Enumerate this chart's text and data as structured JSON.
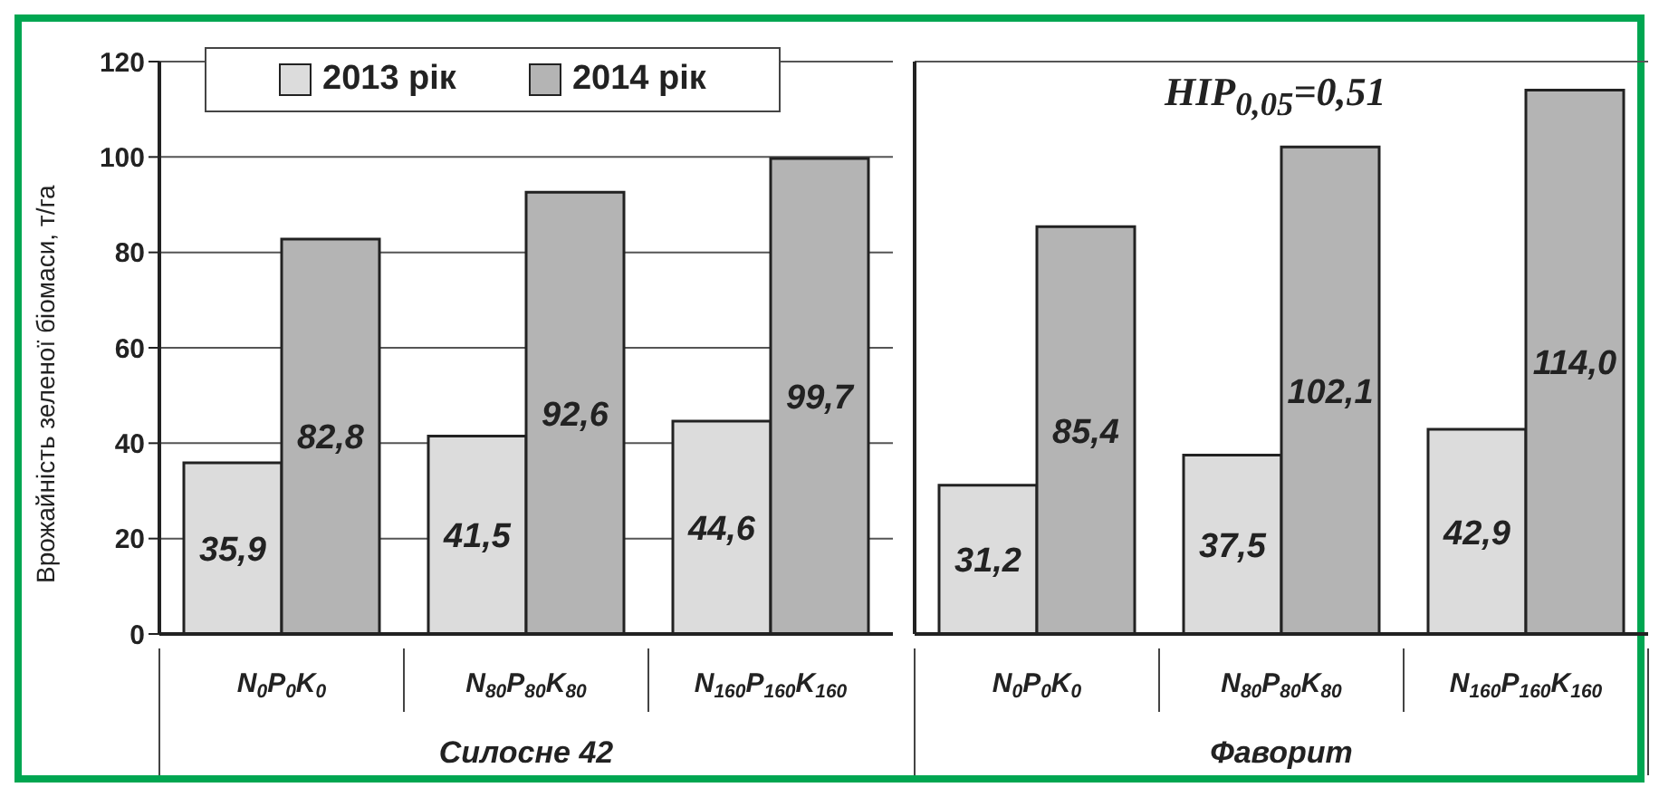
{
  "chart_data": [
    {
      "type": "bar",
      "ylabel": "Врожайність зеленої біомаси, т/га",
      "xlabel": "Силосне 42",
      "categories": [
        "N$_{0}$P$_{0}$K$_{0}$",
        "N$_{80}$P$_{80}$K$_{80}$",
        "N$_{160}$P$_{160}$K$_{160}$"
      ],
      "series": [
        {
          "name": "2013 рік",
          "color": "#dcdcdc",
          "values": [
            35.9,
            41.5,
            44.6
          ],
          "value_labels": [
            "35,9",
            "41,5",
            "44,6"
          ]
        },
        {
          "name": "2014 рік",
          "color": "#b4b4b4",
          "values": [
            82.8,
            92.6,
            99.7
          ],
          "value_labels": [
            "82,8",
            "92,6",
            "99,7"
          ]
        }
      ],
      "ylim": [
        0,
        120
      ],
      "yticks": [
        0,
        20,
        40,
        60,
        80,
        100,
        120
      ],
      "grid": "y",
      "legend": "top left"
    },
    {
      "type": "bar",
      "xlabel": "Фаворит",
      "categories": [
        "N$_{0}$P$_{0}$K$_{0}$",
        "N$_{80}$P$_{80}$K$_{80}$",
        "N$_{160}$P$_{160}$K$_{160}$"
      ],
      "series": [
        {
          "color": "#dcdcdc",
          "values": [
            31.2,
            37.5,
            42.9
          ],
          "value_labels": [
            "31,2",
            "37,5",
            "42,9"
          ]
        },
        {
          "color": "#b4b4b4",
          "values": [
            85.4,
            102.1,
            114.0
          ],
          "value_labels": [
            "85,4",
            "102,1",
            "114,0"
          ]
        }
      ],
      "ylim": [
        0,
        120
      ],
      "yticks": [
        0,
        20,
        40,
        60,
        80,
        100,
        120
      ],
      "grid": "y",
      "tick_labels": "x",
      "annotations": [
        "HIP$_{0,05}$=0,51"
      ]
    }
  ]
}
